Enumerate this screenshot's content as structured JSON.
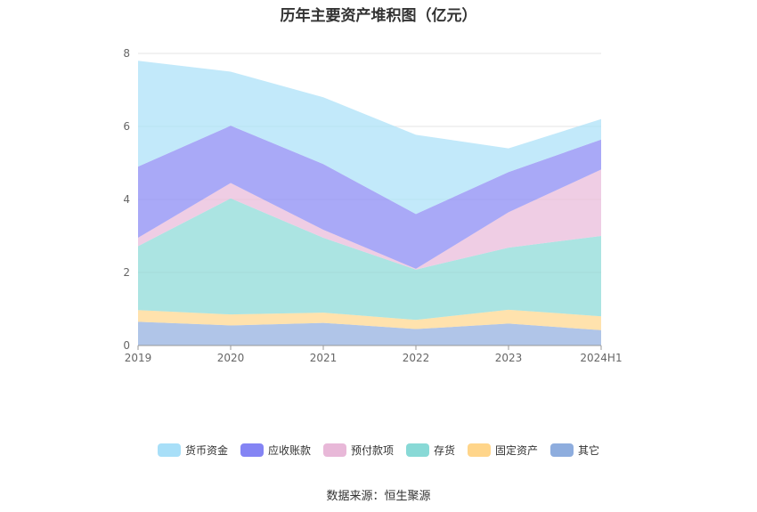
{
  "chart_data": {
    "type": "area",
    "stacked": true,
    "title": "历年主要资产堆积图（亿元）",
    "categories": [
      "2019",
      "2020",
      "2021",
      "2022",
      "2023",
      "2024H1"
    ],
    "ylim": [
      0,
      8
    ],
    "yticks": [
      0,
      2,
      4,
      6,
      8
    ],
    "grid": true,
    "legend_position": "bottom",
    "series": [
      {
        "name": "其它",
        "color": "#8eadde",
        "values": [
          0.65,
          0.55,
          0.62,
          0.45,
          0.6,
          0.42
        ]
      },
      {
        "name": "固定资产",
        "color": "#ffd58a",
        "values": [
          0.32,
          0.3,
          0.28,
          0.25,
          0.38,
          0.38
        ]
      },
      {
        "name": "存货",
        "color": "#88d9d6",
        "values": [
          1.75,
          3.18,
          2.05,
          1.38,
          1.7,
          2.2
        ]
      },
      {
        "name": "预付款项",
        "color": "#e8b8d8",
        "values": [
          0.23,
          0.42,
          0.22,
          0.02,
          0.97,
          1.82
        ]
      },
      {
        "name": "应收账款",
        "color": "#8484f4",
        "values": [
          1.95,
          1.57,
          1.8,
          1.5,
          1.1,
          0.82
        ]
      },
      {
        "name": "货币资金",
        "color": "#a8dff8",
        "values": [
          2.9,
          1.48,
          1.83,
          2.17,
          0.65,
          0.56
        ]
      }
    ]
  },
  "footer": {
    "source": "数据来源：恒生聚源"
  }
}
